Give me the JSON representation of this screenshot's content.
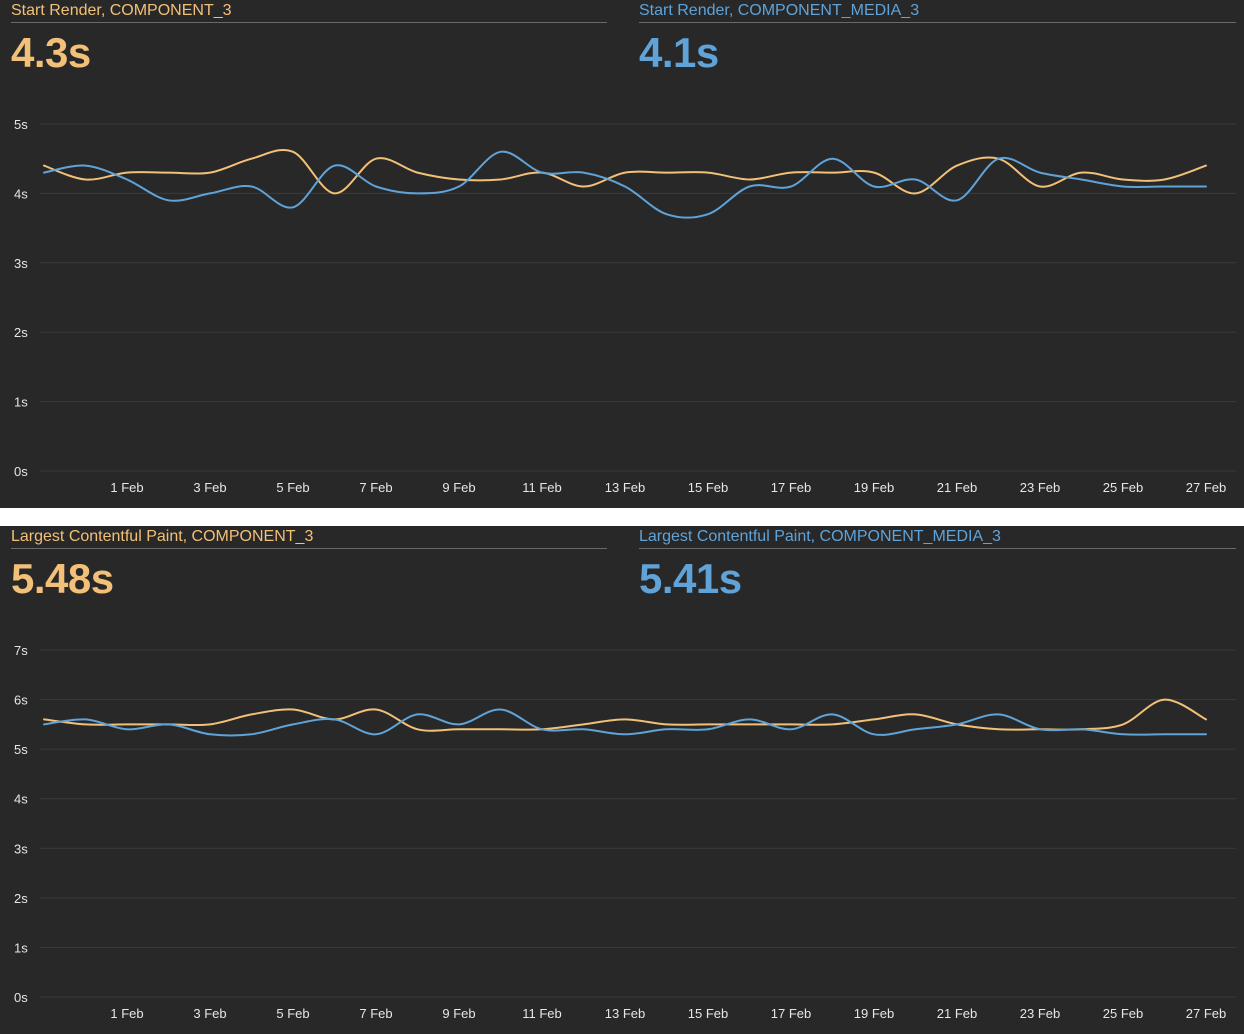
{
  "colors": {
    "series_a": "#f2c078",
    "series_b": "#5fa3d9"
  },
  "panels": [
    {
      "metrics": [
        {
          "title": "Start Render, COMPONENT_3",
          "value": "4.3s"
        },
        {
          "title": "Start Render, COMPONENT_MEDIA_3",
          "value": "4.1s"
        }
      ]
    },
    {
      "metrics": [
        {
          "title": "Largest Contentful Paint, COMPONENT_3",
          "value": "5.48s"
        },
        {
          "title": "Largest Contentful Paint, COMPONENT_MEDIA_3",
          "value": "5.41s"
        }
      ]
    }
  ],
  "chart_data": [
    {
      "type": "line",
      "x_tick_labels": [
        "1 Feb",
        "3 Feb",
        "5 Feb",
        "7 Feb",
        "9 Feb",
        "11 Feb",
        "13 Feb",
        "15 Feb",
        "17 Feb",
        "19 Feb",
        "21 Feb",
        "23 Feb",
        "25 Feb",
        "27 Feb"
      ],
      "y_ticks": [
        "0s",
        "1s",
        "2s",
        "3s",
        "4s",
        "5s"
      ],
      "ylim": [
        0,
        5
      ],
      "x_days": [
        30,
        31,
        32,
        33,
        34,
        35,
        36,
        37,
        38,
        39,
        40,
        41,
        42,
        43,
        44,
        45,
        46,
        47,
        48,
        49,
        50,
        51,
        52,
        53,
        54,
        55,
        56,
        57,
        58
      ],
      "series": [
        {
          "values": [
            4.4,
            4.2,
            4.3,
            4.3,
            4.3,
            4.5,
            4.6,
            4.0,
            4.5,
            4.3,
            4.2,
            4.2,
            4.3,
            4.1,
            4.3,
            4.3,
            4.3,
            4.2,
            4.3,
            4.3,
            4.3,
            4.0,
            4.4,
            4.5,
            4.1,
            4.3,
            4.2,
            4.2,
            4.4
          ]
        },
        {
          "values": [
            4.3,
            4.4,
            4.2,
            3.9,
            4.0,
            4.1,
            3.8,
            4.4,
            4.1,
            4.0,
            4.1,
            4.6,
            4.3,
            4.3,
            4.1,
            3.7,
            3.7,
            4.1,
            4.1,
            4.5,
            4.1,
            4.2,
            3.9,
            4.5,
            4.3,
            4.2,
            4.1,
            4.1,
            4.1
          ]
        }
      ]
    },
    {
      "type": "line",
      "x_tick_labels": [
        "1 Feb",
        "3 Feb",
        "5 Feb",
        "7 Feb",
        "9 Feb",
        "11 Feb",
        "13 Feb",
        "15 Feb",
        "17 Feb",
        "19 Feb",
        "21 Feb",
        "23 Feb",
        "25 Feb",
        "27 Feb"
      ],
      "y_ticks": [
        "0s",
        "1s",
        "2s",
        "3s",
        "4s",
        "5s",
        "6s",
        "7s"
      ],
      "ylim": [
        0,
        7
      ],
      "x_days": [
        30,
        31,
        32,
        33,
        34,
        35,
        36,
        37,
        38,
        39,
        40,
        41,
        42,
        43,
        44,
        45,
        46,
        47,
        48,
        49,
        50,
        51,
        52,
        53,
        54,
        55,
        56,
        57,
        58
      ],
      "series": [
        {
          "values": [
            5.6,
            5.5,
            5.5,
            5.5,
            5.5,
            5.7,
            5.8,
            5.6,
            5.8,
            5.4,
            5.4,
            5.4,
            5.4,
            5.5,
            5.6,
            5.5,
            5.5,
            5.5,
            5.5,
            5.5,
            5.6,
            5.7,
            5.5,
            5.4,
            5.4,
            5.4,
            5.5,
            6.0,
            5.6
          ]
        },
        {
          "values": [
            5.5,
            5.6,
            5.4,
            5.5,
            5.3,
            5.3,
            5.5,
            5.6,
            5.3,
            5.7,
            5.5,
            5.8,
            5.4,
            5.4,
            5.3,
            5.4,
            5.4,
            5.6,
            5.4,
            5.7,
            5.3,
            5.4,
            5.5,
            5.7,
            5.4,
            5.4,
            5.3,
            5.3,
            5.3
          ]
        }
      ]
    }
  ]
}
